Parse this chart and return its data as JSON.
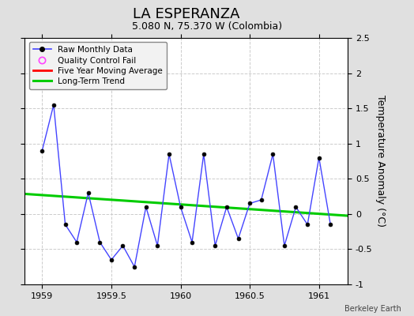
{
  "title": "LA ESPERANZA",
  "subtitle": "5.080 N, 75.370 W (Colombia)",
  "ylabel": "Temperature Anomaly (°C)",
  "attribution": "Berkeley Earth",
  "xlim": [
    1958.875,
    1961.208
  ],
  "ylim": [
    -1.0,
    2.5
  ],
  "yticks": [
    -1.0,
    -0.5,
    0.0,
    0.5,
    1.0,
    1.5,
    2.0,
    2.5
  ],
  "xticks": [
    1959.0,
    1959.5,
    1960.0,
    1960.5,
    1961.0
  ],
  "background_color": "#e0e0e0",
  "plot_bg_color": "#ffffff",
  "raw_x": [
    1959.0,
    1959.083,
    1959.167,
    1959.25,
    1959.333,
    1959.417,
    1959.5,
    1959.583,
    1959.667,
    1959.75,
    1959.833,
    1959.917,
    1960.0,
    1960.083,
    1960.167,
    1960.25,
    1960.333,
    1960.417,
    1960.5,
    1960.583,
    1960.667,
    1960.75,
    1960.833,
    1960.917,
    1961.0,
    1961.083
  ],
  "raw_y": [
    0.9,
    1.55,
    -0.15,
    -0.4,
    0.3,
    -0.4,
    -0.65,
    -0.45,
    -0.75,
    0.1,
    -0.45,
    0.85,
    0.1,
    -0.4,
    0.85,
    -0.45,
    0.1,
    -0.35,
    0.15,
    0.2,
    0.85,
    -0.45,
    0.1,
    -0.15,
    0.8,
    -0.15
  ],
  "raw_color": "#4444ff",
  "raw_marker_color": "#000000",
  "raw_marker_size": 3.5,
  "raw_linewidth": 1.0,
  "trend_x": [
    1958.875,
    1961.208
  ],
  "trend_y": [
    0.285,
    -0.025
  ],
  "trend_color": "#00cc00",
  "trend_linewidth": 2.2,
  "mavg_color": "#ff0000",
  "mavg_linewidth": 2.0,
  "qc_color": "#ff44ff",
  "grid_color": "#cccccc",
  "grid_linestyle": "--",
  "title_fontsize": 13,
  "subtitle_fontsize": 9,
  "tick_fontsize": 8,
  "ylabel_fontsize": 9
}
